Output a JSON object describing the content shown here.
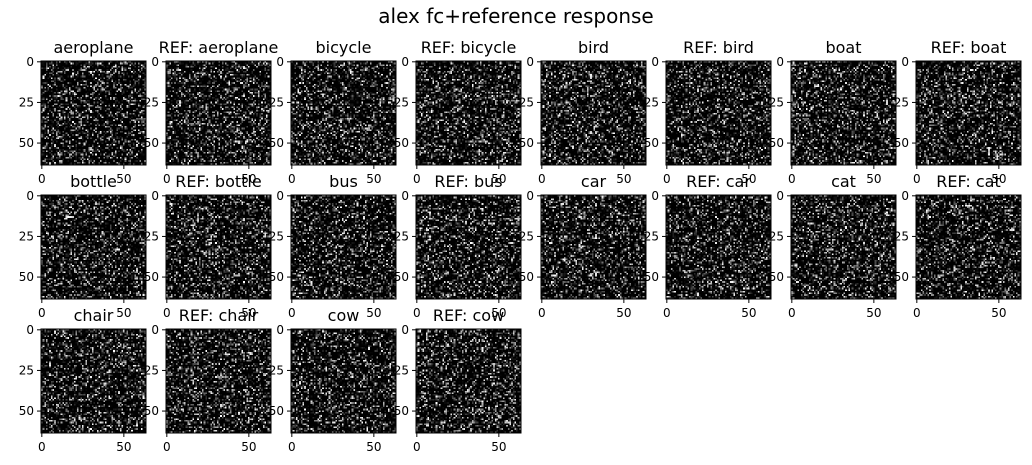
{
  "figure": {
    "suptitle": "alex fc+reference response"
  },
  "chart_data": {
    "type": "heatmap",
    "title": "alex fc+reference response",
    "colormap": "gray",
    "background": "#000000",
    "image_size": [
      64,
      64
    ],
    "grid": false,
    "xticks": [
      0,
      50
    ],
    "yticks": [
      0,
      25,
      50
    ],
    "panels": [
      {
        "title": "aeroplane"
      },
      {
        "title": "REF: aeroplane"
      },
      {
        "title": "bicycle"
      },
      {
        "title": "REF: bicycle"
      },
      {
        "title": "bird"
      },
      {
        "title": "REF: bird"
      },
      {
        "title": "boat"
      },
      {
        "title": "REF: boat"
      },
      {
        "title": "bottle"
      },
      {
        "title": "REF: bottle"
      },
      {
        "title": "bus"
      },
      {
        "title": "REF: bus"
      },
      {
        "title": "car"
      },
      {
        "title": "REF: car"
      },
      {
        "title": "cat"
      },
      {
        "title": "REF: cat"
      },
      {
        "title": "chair"
      },
      {
        "title": "REF: chair"
      },
      {
        "title": "cow"
      },
      {
        "title": "REF: cow"
      }
    ]
  }
}
